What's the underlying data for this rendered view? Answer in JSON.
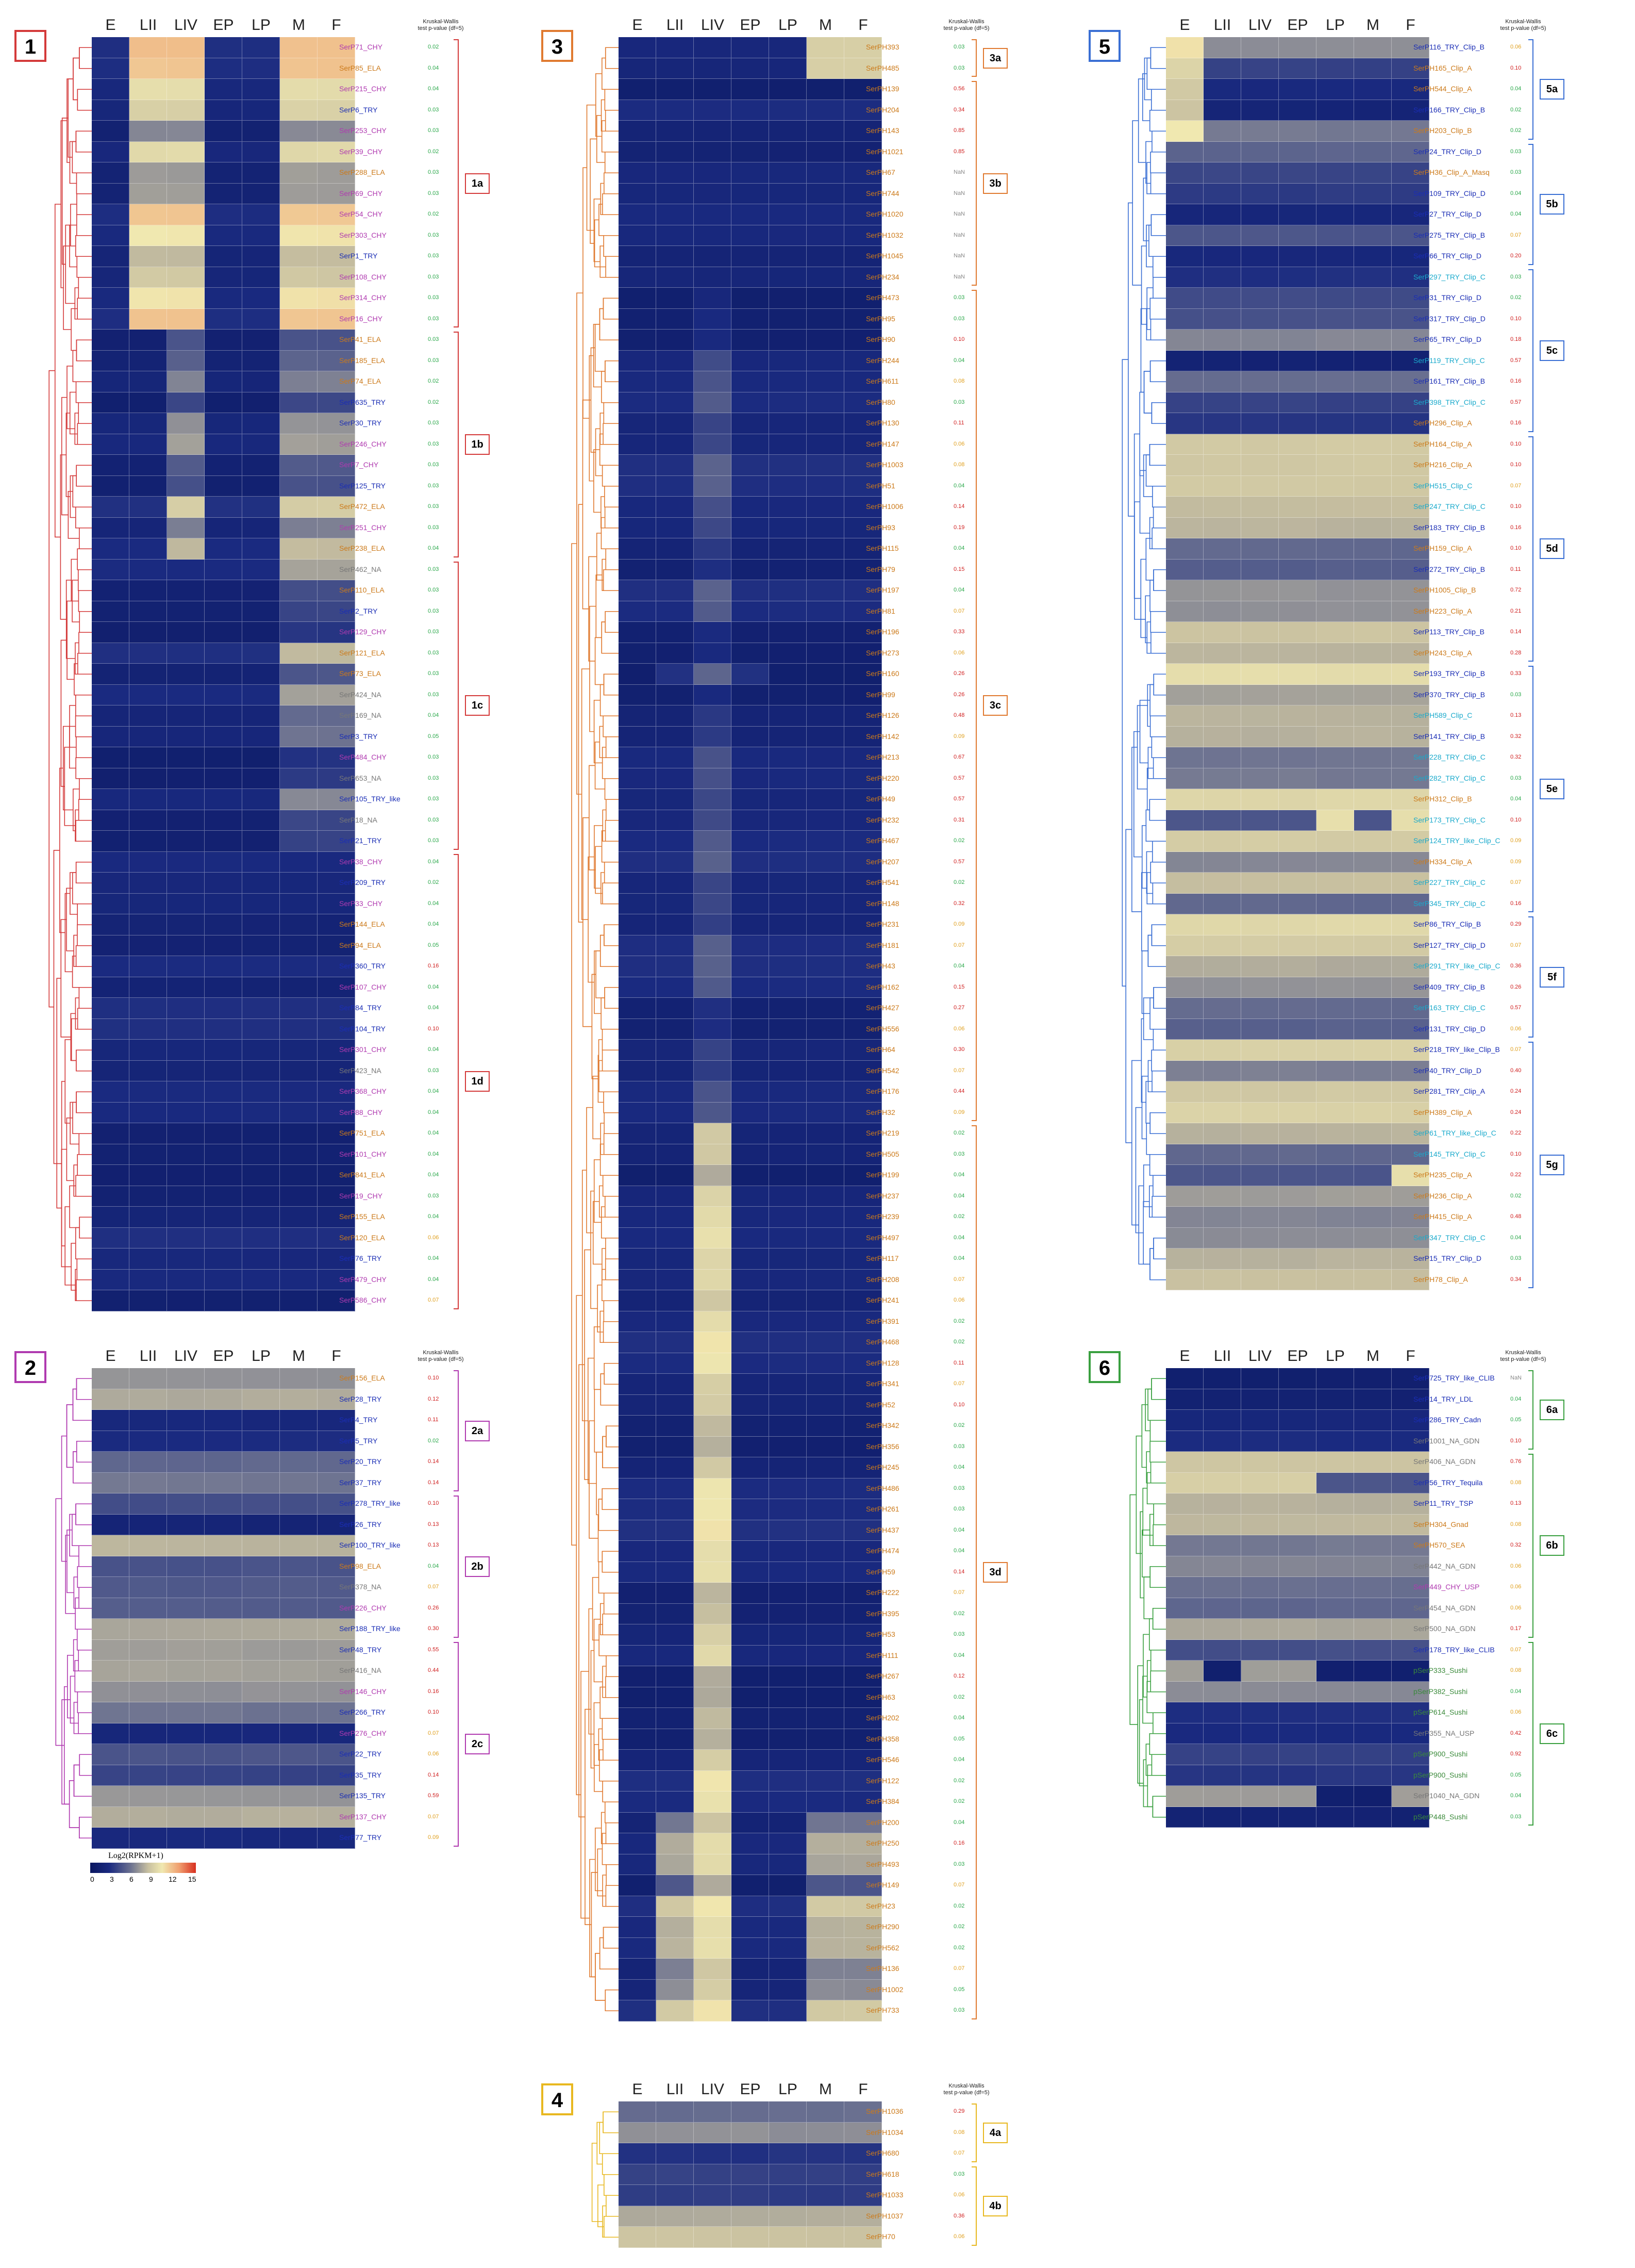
{
  "columns": [
    "E",
    "LII",
    "LIV",
    "EP",
    "LP",
    "M",
    "F"
  ],
  "kw_header": "Kruskal-Wallis test p-value (df=5)",
  "legend": {
    "title": "Log2(RPKM+1)",
    "ticks": [
      "0",
      "3",
      "6",
      "9",
      "12",
      "15"
    ],
    "range": [
      0,
      15
    ]
  },
  "colors": {
    "CHY": "#b03ab0",
    "ELA": "#cc7a1a",
    "TRY": "#1a2db5",
    "NA": "#777777",
    "Clip": "#cc7a1a",
    "ClipC": "#1aaacc",
    "SerPH": "#cc7a1a",
    "pvLow": "#2aa84a",
    "pvMid": "#e0a020",
    "pvHigh": "#d02020"
  },
  "panels": [
    {
      "id": "1",
      "color": "#d43a3a",
      "labels": [
        "SerP71_CHY",
        "SerP85_ELA",
        "SerP215_CHY",
        "SerP6_TRY",
        "SerP253_CHY",
        "SerP39_CHY",
        "SerP288_ELA",
        "SerP69_CHY",
        "SerP54_CHY",
        "SerP303_CHY",
        "SerP1_TRY",
        "SerP108_CHY",
        "SerP314_CHY",
        "SerP16_CHY",
        "SerP41_ELA",
        "SerP185_ELA",
        "SerP74_ELA",
        "SerP635_TRY",
        "SerP30_TRY",
        "SerP246_CHY",
        "SerP7_CHY",
        "SerP125_TRY",
        "SerP472_ELA",
        "SerP251_CHY",
        "SerP238_ELA",
        "SerP462_NA",
        "SerP110_ELA",
        "SerP2_TRY",
        "SerP129_CHY",
        "SerP121_ELA",
        "SerP73_ELA",
        "SerP424_NA",
        "SerP169_NA",
        "SerP3_TRY",
        "SerP484_CHY",
        "SerP653_NA",
        "SerP105_TRY_like",
        "SerP18_NA",
        "SerP21_TRY",
        "SerP38_CHY",
        "SerP209_TRY",
        "SerP33_CHY",
        "SerP144_ELA",
        "SerP94_ELA",
        "SerP360_TRY",
        "SerP107_CHY",
        "SerP84_TRY",
        "SerP104_TRY",
        "SerP301_CHY",
        "SerP423_NA",
        "SerP368_CHY",
        "SerP88_CHY",
        "SerP751_ELA",
        "SerP101_CHY",
        "SerP841_ELA",
        "SerP19_CHY",
        "SerP155_ELA",
        "SerP120_ELA",
        "SerP76_TRY",
        "SerP479_CHY",
        "SerP586_CHY"
      ],
      "pvalues": [
        "0.02",
        "0.04",
        "0.04",
        "0.03",
        "0.03",
        "0.02",
        "0.03",
        "0.03",
        "0.02",
        "0.03",
        "0.03",
        "0.03",
        "0.03",
        "0.03",
        "0.03",
        "0.03",
        "0.02",
        "0.02",
        "0.03",
        "0.03",
        "0.03",
        "0.03",
        "0.03",
        "0.03",
        "0.04",
        "0.03",
        "0.03",
        "0.03",
        "0.03",
        "0.03",
        "0.03",
        "0.03",
        "0.04",
        "0.05",
        "0.03",
        "0.03",
        "0.03",
        "0.03",
        "0.03",
        "0.04",
        "0.02",
        "0.04",
        "0.04",
        "0.05",
        "0.16",
        "0.04",
        "0.04",
        "0.10",
        "0.04",
        "0.03",
        "0.04",
        "0.04",
        "0.04",
        "0.04",
        "0.04",
        "0.03",
        "0.04",
        "0.06",
        "0.04",
        "0.04",
        "0.07"
      ],
      "groups": [
        {
          "label": "1a",
          "start": 0,
          "end": 13
        },
        {
          "label": "1b",
          "start": 14,
          "end": 24
        },
        {
          "label": "1c",
          "start": 25,
          "end": 38
        },
        {
          "label": "1d",
          "start": 39,
          "end": 60
        }
      ]
    },
    {
      "id": "2",
      "color": "#b03ab0",
      "labels": [
        "SerP156_ELA",
        "SerP28_TRY",
        "SerP4_TRY",
        "SerP5_TRY",
        "SerP20_TRY",
        "SerP37_TRY",
        "SerP278_TRY_like",
        "SerP26_TRY",
        "SerP100_TRY_like",
        "SerP98_ELA",
        "SerP378_NA",
        "SerP226_CHY",
        "SerP188_TRY_like",
        "SerP48_TRY",
        "SerP416_NA",
        "SerP146_CHY",
        "SerP266_TRY",
        "SerP276_CHY",
        "SerP22_TRY",
        "SerP35_TRY",
        "SerP135_TRY",
        "SerP137_CHY",
        "SerP77_TRY"
      ],
      "pvalues": [
        "0.10",
        "0.12",
        "0.11",
        "0.02",
        "0.14",
        "0.14",
        "0.10",
        "0.13",
        "0.13",
        "0.04",
        "0.07",
        "0.26",
        "0.30",
        "0.55",
        "0.44",
        "0.16",
        "0.10",
        "0.07",
        "0.06",
        "0.14",
        "0.59",
        "0.07",
        "0.09"
      ],
      "groups": [
        {
          "label": "2a",
          "start": 0,
          "end": 5
        },
        {
          "label": "2b",
          "start": 6,
          "end": 12
        },
        {
          "label": "2c",
          "start": 13,
          "end": 22
        }
      ]
    },
    {
      "id": "3",
      "color": "#e07a30",
      "labels": [
        "SerPH393",
        "SerPH485",
        "SerPH139",
        "SerPH204",
        "SerPH143",
        "SerPH1021",
        "SerPH67",
        "SerPH744",
        "SerPH1020",
        "SerPH1032",
        "SerPH1045",
        "SerPH234",
        "SerPH473",
        "SerPH95",
        "SerPH90",
        "SerPH244",
        "SerPH611",
        "SerPH80",
        "SerPH130",
        "SerPH147",
        "SerPH1003",
        "SerPH51",
        "SerPH1006",
        "SerPH93",
        "SerPH115",
        "SerPH79",
        "SerPH197",
        "SerPH81",
        "SerPH196",
        "SerPH273",
        "SerPH160",
        "SerPH99",
        "SerPH126",
        "SerPH142",
        "SerPH213",
        "SerPH220",
        "SerPH49",
        "SerPH232",
        "SerPH467",
        "SerPH207",
        "SerPH541",
        "SerPH148",
        "SerPH231",
        "SerPH181",
        "SerPH43",
        "SerPH162",
        "SerPH427",
        "SerPH556",
        "SerPH64",
        "SerPH542",
        "SerPH176",
        "SerPH32",
        "SerPH219",
        "SerPH505",
        "SerPH199",
        "SerPH237",
        "SerPH239",
        "SerPH497",
        "SerPH117",
        "SerPH208",
        "SerPH241",
        "SerPH391",
        "SerPH468",
        "SerPH128",
        "SerPH341",
        "SerPH52",
        "SerPH342",
        "SerPH356",
        "SerPH245",
        "SerPH486",
        "SerPH261",
        "SerPH437",
        "SerPH474",
        "SerPH59",
        "SerPH222",
        "SerPH395",
        "SerPH53",
        "SerPH111",
        "SerPH267",
        "SerPH63",
        "SerPH202",
        "SerPH358",
        "SerPH546",
        "SerPH122",
        "SerPH384",
        "SerPH200",
        "SerPH250",
        "SerPH493",
        "SerPH149",
        "SerPH23",
        "SerPH290",
        "SerPH562",
        "SerPH136",
        "SerPH1002",
        "SerPH733"
      ],
      "pvalues": [
        "0.03",
        "0.03",
        "0.56",
        "0.34",
        "0.85",
        "0.85",
        "NaN",
        "NaN",
        "NaN",
        "NaN",
        "NaN",
        "NaN",
        "0.03",
        "0.03",
        "0.10",
        "0.04",
        "0.08",
        "0.03",
        "0.11",
        "0.06",
        "0.08",
        "0.04",
        "0.14",
        "0.19",
        "0.04",
        "0.15",
        "0.04",
        "0.07",
        "0.33",
        "0.06",
        "0.26",
        "0.26",
        "0.48",
        "0.09",
        "0.67",
        "0.57",
        "0.57",
        "0.31",
        "0.02",
        "0.57",
        "0.02",
        "0.32",
        "0.09",
        "0.07",
        "0.04",
        "0.15",
        "0.27",
        "0.06",
        "0.30",
        "0.07",
        "0.44",
        "0.09",
        "0.02",
        "0.03",
        "0.04",
        "0.04",
        "0.02",
        "0.04",
        "0.04",
        "0.07",
        "0.06",
        "0.02",
        "0.02",
        "0.11",
        "0.07",
        "0.10",
        "0.02",
        "0.03",
        "0.04",
        "0.03",
        "0.03",
        "0.04",
        "0.04",
        "0.14",
        "0.07",
        "0.02",
        "0.03",
        "0.04",
        "0.12",
        "0.02",
        "0.04",
        "0.05",
        "0.04",
        "0.02",
        "0.02",
        "0.04",
        "0.16",
        "0.03",
        "0.07",
        "0.02",
        "0.02",
        "0.02",
        "0.07",
        "0.05",
        "0.03"
      ],
      "groups": [
        {
          "label": "3a",
          "start": 0,
          "end": 1
        },
        {
          "label": "3b",
          "start": 2,
          "end": 11
        },
        {
          "label": "3c",
          "start": 12,
          "end": 51
        },
        {
          "label": "3d",
          "start": 52,
          "end": 94
        }
      ]
    },
    {
      "id": "4",
      "color": "#e8b820",
      "labels": [
        "SerPH1036",
        "SerPH1034",
        "SerPH680",
        "SerPH618",
        "SerPH1033",
        "SerPH1037",
        "SerPH70"
      ],
      "pvalues": [
        "0.29",
        "0.08",
        "0.07",
        "0.03",
        "0.06",
        "0.36",
        "0.06"
      ],
      "groups": [
        {
          "label": "4a",
          "start": 0,
          "end": 2
        },
        {
          "label": "4b",
          "start": 3,
          "end": 6
        }
      ]
    },
    {
      "id": "5",
      "color": "#3a6fd4",
      "labels": [
        "SerP116_TRY_Clip_B",
        "SerPH165_Clip_A",
        "SerPH544_Clip_A",
        "SerP166_TRY_Clip_B",
        "SerPH203_Clip_B",
        "SerP24_TRY_Clip_D",
        "SerPH36_Clip_A_Masq",
        "SerP109_TRY_Clip_D",
        "SerP27_TRY_Clip_D",
        "SerP275_TRY_Clip_B",
        "SerP66_TRY_Clip_D",
        "SerP297_TRY_Clip_C",
        "SerP31_TRY_Clip_D",
        "SerP317_TRY_Clip_D",
        "SerP65_TRY_Clip_D",
        "SerP119_TRY_Clip_C",
        "SerP161_TRY_Clip_B",
        "SerP398_TRY_Clip_C",
        "SerPH296_Clip_A",
        "SerPH164_Clip_A",
        "SerPH216_Clip_A",
        "SerPH515_Clip_C",
        "SerP247_TRY_Clip_C",
        "SerP183_TRY_Clip_B",
        "SerPH159_Clip_A",
        "SerP272_TRY_Clip_B",
        "SerPH1005_Clip_B",
        "SerPH223_Clip_A",
        "SerP113_TRY_Clip_B",
        "SerPH243_Clip_A",
        "SerP193_TRY_Clip_B",
        "SerP370_TRY_Clip_B",
        "SerPH589_Clip_C",
        "SerP141_TRY_Clip_B",
        "SerP228_TRY_Clip_C",
        "SerP282_TRY_Clip_C",
        "SerPH312_Clip_B",
        "SerP173_TRY_Clip_C",
        "SerP124_TRY_like_Clip_C",
        "SerPH334_Clip_A",
        "SerP227_TRY_Clip_C",
        "SerP345_TRY_Clip_C",
        "SerP86_TRY_Clip_B",
        "SerP127_TRY_Clip_D",
        "SerP291_TRY_like_Clip_C",
        "SerP409_TRY_Clip_B",
        "SerP163_TRY_Clip_C",
        "SerP131_TRY_Clip_D",
        "SerP218_TRY_like_Clip_B",
        "SerP40_TRY_Clip_D",
        "SerP281_TRY_Clip_A",
        "SerPH389_Clip_A",
        "SerP61_TRY_like_Clip_C",
        "SerP145_TRY_Clip_C",
        "SerPH235_Clip_A",
        "SerPH236_Clip_A",
        "SerPH415_Clip_A",
        "SerP347_TRY_Clip_C",
        "SerP15_TRY_Clip_D",
        "SerPH78_Clip_A"
      ],
      "pvalues": [
        "0.06",
        "0.10",
        "0.04",
        "0.02",
        "0.02",
        "0.03",
        "0.03",
        "0.04",
        "0.04",
        "0.07",
        "0.20",
        "0.03",
        "0.02",
        "0.10",
        "0.18",
        "0.57",
        "0.16",
        "0.57",
        "0.16",
        "0.10",
        "0.10",
        "0.07",
        "0.10",
        "0.16",
        "0.10",
        "0.11",
        "0.72",
        "0.21",
        "0.14",
        "0.28",
        "0.33",
        "0.03",
        "0.13",
        "0.32",
        "0.32",
        "0.03",
        "0.04",
        "0.10",
        "0.09",
        "0.09",
        "0.07",
        "0.16",
        "0.29",
        "0.07",
        "0.36",
        "0.26",
        "0.57",
        "0.06",
        "0.07",
        "0.40",
        "0.24",
        "0.24",
        "0.22",
        "0.10",
        "0.22",
        "0.02",
        "0.48",
        "0.04",
        "0.03",
        "0.34"
      ],
      "groups": [
        {
          "label": "5a",
          "start": 0,
          "end": 4
        },
        {
          "label": "5b",
          "start": 5,
          "end": 10
        },
        {
          "label": "5c",
          "start": 11,
          "end": 18
        },
        {
          "label": "5d",
          "start": 19,
          "end": 29
        },
        {
          "label": "5e",
          "start": 30,
          "end": 41
        },
        {
          "label": "5f",
          "start": 42,
          "end": 47
        },
        {
          "label": "5g",
          "start": 48,
          "end": 59
        }
      ]
    },
    {
      "id": "6",
      "color": "#3aa040",
      "labels": [
        "SerP725_TRY_like_CLIB",
        "SerP14_TRY_LDL",
        "SerP286_TRY_Cadn",
        "SerP1001_NA_GDN",
        "SerP406_NA_GDN",
        "SerP56_TRY_Tequila",
        "SerP11_TRY_TSP",
        "SerPH304_Gnad",
        "SerPH570_SEA",
        "SerP442_NA_GDN",
        "SerP449_CHY_USP",
        "SerP454_NA_GDN",
        "SerP500_NA_GDN",
        "SerP178_TRY_like_CLIB",
        "pSerP333_Sushi",
        "pSerP382_Sushi",
        "pSerP614_Sushi",
        "SerP355_NA_USP",
        "pSerP900_Sushi",
        "pSerP900_Sushi",
        "SerP1040_NA_GDN",
        "pSerP448_Sushi"
      ],
      "pvalues": [
        "NaN",
        "0.04",
        "0.05",
        "0.10",
        "0.76",
        "0.08",
        "0.13",
        "0.08",
        "0.32",
        "0.06",
        "0.06",
        "0.06",
        "0.17",
        "0.07",
        "0.08",
        "0.04",
        "0.06",
        "0.42",
        "0.92",
        "0.05",
        "0.04",
        "0.03"
      ],
      "groups": [
        {
          "label": "6a",
          "start": 0,
          "end": 3
        },
        {
          "label": "6b",
          "start": 4,
          "end": 12
        },
        {
          "label": "6c",
          "start": 13,
          "end": 21
        }
      ]
    }
  ]
}
